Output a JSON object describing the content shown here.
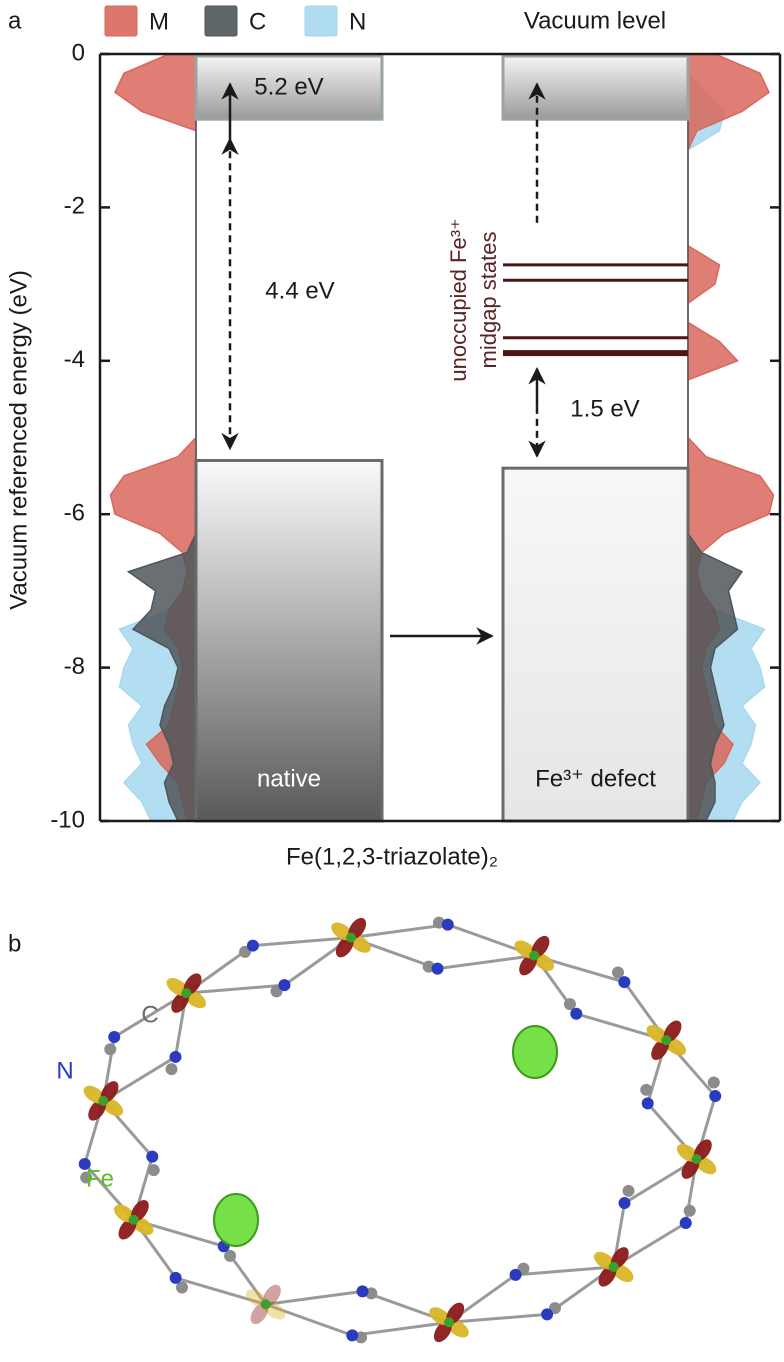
{
  "chart_data": {
    "type": "band-diagram",
    "panel_labels": [
      "a",
      "b"
    ],
    "ylabel": "Vacuum referenced energy (eV)",
    "xlabel": "Fe(1,2,3-triazolate)₂",
    "vacuum_label": "Vacuum level",
    "ylim": [
      -10,
      0
    ],
    "yticks": [
      0,
      -2,
      -4,
      -6,
      -8,
      -10
    ],
    "series": [
      {
        "name": "M",
        "color": "#d9675c"
      },
      {
        "name": "C",
        "color": "#4f5659"
      },
      {
        "name": "N",
        "color": "#a6d8ee"
      }
    ],
    "energy": [
      0,
      -0.25,
      -0.5,
      -0.75,
      -1,
      -1.25,
      -1.5,
      -1.75,
      -2,
      -2.25,
      -2.5,
      -2.75,
      -3,
      -3.25,
      -3.5,
      -3.75,
      -4,
      -4.25,
      -4.5,
      -4.75,
      -5,
      -5.25,
      -5.5,
      -5.75,
      -6,
      -6.25,
      -6.5,
      -6.75,
      -7,
      -7.25,
      -7.5,
      -7.75,
      -8,
      -8.25,
      -8.5,
      -8.75,
      -9,
      -9.25,
      -9.5,
      -9.75,
      -10
    ],
    "panels": [
      {
        "label": "native",
        "cbm": -0.85,
        "vbm": -5.3,
        "top_label": "5.2 eV",
        "gap_label": "4.4 eV",
        "dos": [
          [
            0.3,
            0.8,
            0.9,
            0.6,
            0,
            0,
            0,
            0,
            0,
            0,
            0,
            0,
            0,
            0,
            0,
            0,
            0,
            0,
            0,
            0,
            0,
            0.2,
            0.8,
            0.95,
            0.9,
            0.4,
            0.15,
            0.1,
            0.15,
            0.3,
            0.35,
            0.2,
            0.15,
            0.2,
            0.25,
            0.3,
            0.55,
            0.4,
            0.2,
            0.15,
            0.1
          ],
          [
            0,
            0,
            0,
            0,
            0,
            0,
            0,
            0,
            0,
            0,
            0,
            0,
            0,
            0,
            0,
            0,
            0,
            0,
            0,
            0,
            0,
            0,
            0,
            0,
            0,
            0,
            0.1,
            0.75,
            0.45,
            0.5,
            0.7,
            0.3,
            0.2,
            0.25,
            0.35,
            0.4,
            0.3,
            0.25,
            0.35,
            0.3,
            0.2
          ],
          [
            0,
            0,
            0,
            0,
            0,
            0,
            0,
            0,
            0,
            0,
            0,
            0,
            0,
            0,
            0,
            0,
            0,
            0,
            0,
            0,
            0,
            0,
            0,
            0,
            0,
            0,
            0,
            0,
            0,
            0.3,
            0.85,
            0.7,
            0.8,
            0.85,
            0.6,
            0.75,
            0.7,
            0.6,
            0.8,
            0.6,
            0.5
          ]
        ]
      },
      {
        "label": "Fe³⁺ defect",
        "cbm": -0.85,
        "vbm": -5.4,
        "gap_label": "1.5 eV",
        "midgap_label": [
          "unoccupied Fe³⁺",
          "midgap states"
        ],
        "midgap_levels": [
          -2.75,
          -2.95,
          -3.7,
          -3.9
        ],
        "dos": [
          [
            0.3,
            0.8,
            0.9,
            0.6,
            0.1,
            0,
            0,
            0,
            0,
            0,
            0,
            0.35,
            0.3,
            0,
            0,
            0.35,
            0.55,
            0,
            0,
            0,
            0,
            0.2,
            0.8,
            0.95,
            0.9,
            0.4,
            0.15,
            0.1,
            0.15,
            0.3,
            0.35,
            0.2,
            0.15,
            0.2,
            0.25,
            0.3,
            0.5,
            0.4,
            0.2,
            0.15,
            0.1
          ],
          [
            0,
            0,
            0,
            0,
            0,
            0,
            0,
            0,
            0,
            0,
            0,
            0,
            0,
            0,
            0,
            0,
            0,
            0,
            0,
            0,
            0,
            0,
            0,
            0,
            0,
            0,
            0.15,
            0.6,
            0.45,
            0.5,
            0.55,
            0.3,
            0.25,
            0.3,
            0.35,
            0.4,
            0.3,
            0.25,
            0.3,
            0.3,
            0.2
          ],
          [
            0,
            0,
            0.2,
            0.4,
            0.35,
            0,
            0,
            0,
            0,
            0,
            0,
            0,
            0,
            0,
            0,
            0,
            0,
            0,
            0,
            0,
            0,
            0,
            0,
            0,
            0,
            0,
            0,
            0,
            0,
            0.3,
            0.85,
            0.7,
            0.8,
            0.85,
            0.6,
            0.75,
            0.7,
            0.6,
            0.8,
            0.6,
            0.5
          ]
        ]
      }
    ],
    "atom_labels": [
      "C",
      "N",
      "Fe"
    ]
  }
}
